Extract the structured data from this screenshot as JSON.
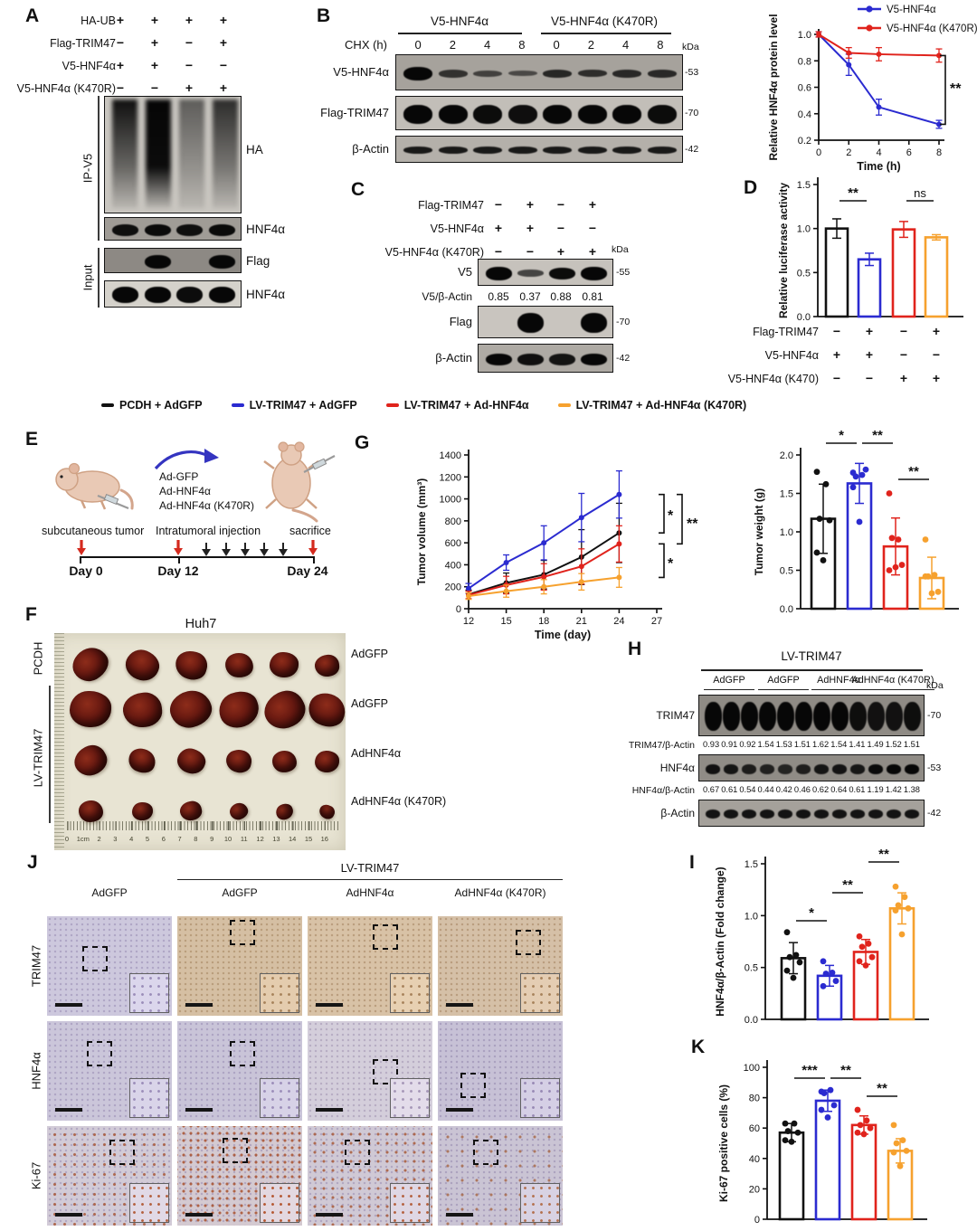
{
  "colors": {
    "black": "#111111",
    "blue": "#2b2bd0",
    "red": "#e0231c",
    "orange": "#f6a12e"
  },
  "panelA": {
    "label": "A",
    "conditions": [
      {
        "name": "HA-UB",
        "values": [
          "+",
          "+",
          "+",
          "+"
        ]
      },
      {
        "name": "Flag-TRIM47",
        "values": [
          "−",
          "+",
          "−",
          "+"
        ]
      },
      {
        "name": "V5-HNF4α",
        "values": [
          "+",
          "+",
          "−",
          "−"
        ]
      },
      {
        "name": "V5-HNF4α (K470R)",
        "values": [
          "−",
          "−",
          "+",
          "+"
        ]
      }
    ],
    "ip_label": "IP-V5",
    "input_label": "Input",
    "blots": [
      {
        "name": "HA",
        "type": "smear"
      },
      {
        "name": "HNF4α",
        "bands": [
          0.9,
          0.95,
          0.9,
          0.95
        ],
        "bh": 13
      },
      {
        "name": "Flag",
        "bands": [
          0,
          1,
          0,
          1
        ],
        "bh": 15
      },
      {
        "name": "HNF4α",
        "bands": [
          1,
          1,
          0.95,
          1
        ],
        "bh": 18
      }
    ]
  },
  "panelB": {
    "label": "B",
    "groups": [
      "V5-HNF4α",
      "V5-HNF4α (K470R)"
    ],
    "chx_label": "CHX (h)",
    "times": [
      "0",
      "2",
      "4",
      "8",
      "0",
      "2",
      "4",
      "8"
    ],
    "kda": "kDa",
    "blots": [
      {
        "name": "V5-HNF4α",
        "kda": "-53",
        "bands": [
          1,
          0.5,
          0.32,
          0.22,
          0.62,
          0.55,
          0.6,
          0.6
        ],
        "bh": [
          15,
          9,
          7,
          6,
          9,
          8,
          9,
          9
        ]
      },
      {
        "name": "Flag-TRIM47",
        "kda": "-70",
        "bands": [
          1,
          1,
          0.95,
          0.92,
          1,
          1,
          1,
          0.95
        ],
        "bh": 21
      },
      {
        "name": "β-Actin",
        "kda": "-42",
        "bands": [
          0.8,
          0.8,
          0.8,
          0.8,
          0.8,
          0.8,
          0.8,
          0.8
        ],
        "bh": 8
      }
    ]
  },
  "panelC": {
    "label": "C",
    "conditions": [
      {
        "name": "Flag-TRIM47",
        "values": [
          "−",
          "+",
          "−",
          "+"
        ]
      },
      {
        "name": "V5-HNF4α",
        "values": [
          "+",
          "+",
          "−",
          "−"
        ]
      },
      {
        "name": "V5-HNF4α (K470R)",
        "values": [
          "−",
          "−",
          "+",
          "+"
        ]
      }
    ],
    "kda": "kDa",
    "ratio": {
      "name": "V5/β-Actin",
      "values": [
        "0.85",
        "0.37",
        "0.88",
        "0.81"
      ]
    },
    "blots": [
      {
        "name": "V5",
        "kda": "-55",
        "bands": [
          1,
          0.4,
          0.95,
          1
        ],
        "bh": [
          15,
          8,
          13,
          15
        ]
      },
      {
        "name": "Flag",
        "kda": "-70",
        "bands": [
          0,
          1,
          0,
          1
        ],
        "bh": 22
      },
      {
        "name": "β-Actin",
        "kda": "-42",
        "bands": [
          1,
          0.9,
          0.85,
          1
        ],
        "bh": 13
      }
    ]
  },
  "panelD": {
    "label": "D"
  },
  "legend": {
    "items": [
      {
        "label": "PCDH + AdGFP",
        "color": "black"
      },
      {
        "label": "LV-TRIM47 + AdGFP",
        "color": "blue"
      },
      {
        "label": "LV-TRIM47 + Ad-HNF4α",
        "color": "red"
      },
      {
        "label": "LV-TRIM47 + Ad-HNF4α (K470R)",
        "color": "orange"
      }
    ]
  },
  "panelE": {
    "label": "E",
    "injections": [
      "Ad-GFP",
      "Ad-HNF4α",
      "Ad-HNF4α (K470R)"
    ],
    "events": [
      {
        "label": "subcutaneous tumor",
        "day": "Day 0"
      },
      {
        "label": "Intratumoral injection",
        "day": "Day 12"
      },
      {
        "label": "sacrifice",
        "day": "Day 24"
      }
    ]
  },
  "panelF": {
    "label": "F",
    "title": "Huh7",
    "left_labels": [
      "PCDH",
      "LV-TRIM47"
    ],
    "row_labels": [
      "AdGFP",
      "AdGFP",
      "AdHNF4α",
      "AdHNF4α (K470R)"
    ],
    "ruler": [
      "0",
      "1cm",
      "2",
      "3",
      "4",
      "5",
      "6",
      "7",
      "8",
      "9",
      "10",
      "11",
      "12",
      "13",
      "14",
      "15",
      "16"
    ]
  },
  "panelG": {
    "label": "G"
  },
  "panelH": {
    "label": "H",
    "header": "LV-TRIM47",
    "kda": "kDa",
    "groups": [
      "AdGFP",
      "AdGFP",
      "AdHNF4α",
      "AdHNF4α (K470R)"
    ],
    "rows": [
      {
        "type": "blot",
        "name": "TRIM47",
        "kda": "-70",
        "bands": [
          1,
          1,
          1,
          1,
          1,
          1,
          1,
          1,
          0.9,
          0.85,
          0.85,
          0.9
        ],
        "bh": 32
      },
      {
        "type": "values",
        "name": "TRIM47/β-Actin",
        "values": [
          "0.93",
          "0.91",
          "0.92",
          "1.54",
          "1.53",
          "1.51",
          "1.62",
          "1.54",
          "1.41",
          "1.49",
          "1.52",
          "1.51"
        ]
      },
      {
        "type": "blot",
        "name": "HNF4α",
        "kda": "-53",
        "bands": [
          0.85,
          0.8,
          0.7,
          0.65,
          0.6,
          0.68,
          0.8,
          0.82,
          0.78,
          0.95,
          1,
          1
        ],
        "bh": 11
      },
      {
        "type": "values",
        "name": "HNF4α/β-Actin",
        "values": [
          "0.67",
          "0.61",
          "0.54",
          "0.44",
          "0.42",
          "0.46",
          "0.62",
          "0.64",
          "0.61",
          "1.19",
          "1.42",
          "1.38"
        ]
      },
      {
        "type": "blot",
        "name": "β-Actin",
        "kda": "-42",
        "bands": [
          0.85,
          0.85,
          0.85,
          0.85,
          0.85,
          0.85,
          0.85,
          0.85,
          0.85,
          0.85,
          0.85,
          0.85
        ],
        "bh": 10
      }
    ]
  },
  "panelI": {
    "label": "I"
  },
  "panelJ": {
    "label": "J",
    "header": "LV-TRIM47",
    "col_labels": [
      "AdGFP",
      "AdGFP",
      "AdHNF4α",
      "AdHNF4α (K470R)"
    ],
    "row_labels": [
      "TRIM47",
      "HNF4α",
      "Ki-67"
    ],
    "cells": [
      [
        {
          "bg": "#cdc8dd",
          "spk": "#9184ad"
        },
        {
          "bg": "#d5bfa3",
          "spk": "#9c7a55"
        },
        {
          "bg": "#d8c2a6",
          "spk": "#9c7a55"
        },
        {
          "bg": "#d5c0a7",
          "spk": "#9c7a55"
        }
      ],
      [
        {
          "bg": "#cbc6da",
          "spk": "#9184ad"
        },
        {
          "bg": "#c9c4d8",
          "spk": "#9184ad"
        },
        {
          "bg": "#d4cedb",
          "spk": "#9a8cab"
        },
        {
          "bg": "#c7c1d6",
          "spk": "#8d80a8"
        }
      ],
      [
        {
          "bg": "#d2cbd7",
          "spk": "#9184ad",
          "dot": "#a85a3a",
          "ds": "11px"
        },
        {
          "bg": "#d4cad1",
          "spk": "#9184ad",
          "dot": "#a8512e",
          "ds": "8px"
        },
        {
          "bg": "#d0c9d5",
          "spk": "#9184ad",
          "dot": "#a85a3a",
          "ds": "10px"
        },
        {
          "bg": "#cac4d4",
          "spk": "#8d80a8",
          "dot": "#a86a4a",
          "ds": "16px"
        }
      ]
    ]
  },
  "panelK": {
    "label": "K"
  },
  "chart_data": [
    {
      "id": "hnf4a_decay",
      "panel": "B",
      "type": "line",
      "xlabel": "Time (h)",
      "ylabel": "Relative HNF4α protein level",
      "x": [
        0,
        2,
        4,
        8
      ],
      "xticks": [
        0,
        2,
        4,
        6,
        8
      ],
      "xlim": [
        0,
        8
      ],
      "ylim": [
        0.2,
        1.0
      ],
      "yticks": [
        0.2,
        0.4,
        0.6,
        0.8,
        1.0
      ],
      "series": [
        {
          "name": "V5-HNF4α",
          "color": "blue",
          "values": [
            1.0,
            0.77,
            0.45,
            0.32
          ],
          "err": [
            0.02,
            0.08,
            0.06,
            0.03
          ]
        },
        {
          "name": "V5-HNF4α (K470R)",
          "color": "red",
          "values": [
            1.0,
            0.86,
            0.85,
            0.84
          ],
          "err": [
            0.02,
            0.04,
            0.05,
            0.05
          ]
        }
      ],
      "sig": "**",
      "legend_position": "top-right"
    },
    {
      "id": "luciferase",
      "panel": "D",
      "type": "bar",
      "ylabel": "Relative luciferase activity",
      "ylim": [
        0,
        1.5
      ],
      "yticks": [
        0.0,
        0.5,
        1.0,
        1.5
      ],
      "values": [
        1.0,
        0.65,
        0.99,
        0.9
      ],
      "err": [
        0.11,
        0.07,
        0.09,
        0.03
      ],
      "colors": [
        "black",
        "blue",
        "red",
        "orange"
      ],
      "sig": [
        {
          "from": 0,
          "to": 1,
          "label": "**"
        },
        {
          "from": 2,
          "to": 3,
          "label": "ns"
        }
      ],
      "conditions": [
        {
          "name": "Flag-TRIM47",
          "values": [
            "−",
            "+",
            "−",
            "+"
          ]
        },
        {
          "name": "V5-HNF4α",
          "values": [
            "+",
            "+",
            "−",
            "−"
          ]
        },
        {
          "name": "V5-HNF4α (K470)",
          "values": [
            "−",
            "−",
            "+",
            "+"
          ]
        }
      ]
    },
    {
      "id": "tumor_volume",
      "panel": "G",
      "type": "line",
      "xlabel": "Time (day)",
      "ylabel": "Tumor volume (mm³)",
      "x": [
        12,
        15,
        18,
        21,
        24
      ],
      "xticks": [
        12,
        15,
        18,
        21,
        24,
        27
      ],
      "xlim": [
        12,
        27
      ],
      "ylim": [
        0,
        1400
      ],
      "yticks": [
        0,
        200,
        400,
        600,
        800,
        1000,
        1200,
        1400
      ],
      "series": [
        {
          "name": "PCDH + AdGFP",
          "color": "black",
          "values": [
            130,
            235,
            310,
            470,
            690
          ],
          "err": [
            40,
            90,
            130,
            250,
            270
          ]
        },
        {
          "name": "LV-TRIM47 + AdGFP",
          "color": "blue",
          "values": [
            185,
            420,
            600,
            830,
            1040
          ],
          "err": [
            45,
            70,
            155,
            220,
            215
          ]
        },
        {
          "name": "LV-TRIM47 + Ad-HNF4α",
          "color": "red",
          "values": [
            125,
            215,
            290,
            385,
            590
          ],
          "err": [
            35,
            80,
            120,
            160,
            165
          ]
        },
        {
          "name": "LV-TRIM47 + Ad-HNF4α (K470R)",
          "color": "orange",
          "values": [
            115,
            160,
            200,
            245,
            285
          ],
          "err": [
            30,
            55,
            65,
            75,
            90
          ]
        }
      ],
      "sig": [
        {
          "label": "*"
        },
        {
          "label": "**"
        },
        {
          "label": "*"
        }
      ]
    },
    {
      "id": "tumor_weight",
      "panel": "G",
      "type": "bar",
      "ylabel": "Tumor weight (g)",
      "ylim": [
        0,
        2.0
      ],
      "yticks": [
        0.0,
        0.5,
        1.0,
        1.5,
        2.0
      ],
      "values": [
        1.17,
        1.63,
        0.81,
        0.4
      ],
      "err": [
        0.45,
        0.26,
        0.37,
        0.27
      ],
      "colors": [
        "black",
        "blue",
        "red",
        "orange"
      ],
      "dots": [
        [
          1.78,
          1.62,
          1.17,
          1.15,
          0.73,
          0.63
        ],
        [
          1.77,
          1.74,
          1.72,
          1.81,
          1.58,
          1.13
        ],
        [
          1.5,
          0.9,
          0.92,
          0.57,
          0.5,
          0.54
        ],
        [
          0.9,
          0.44,
          0.42,
          0.22,
          0.42,
          0.2
        ]
      ],
      "sig": [
        {
          "from": 0,
          "to": 1,
          "label": "*"
        },
        {
          "from": 1,
          "to": 2,
          "label": "**"
        },
        {
          "from": 2,
          "to": 3,
          "label": "**"
        }
      ]
    },
    {
      "id": "hnf4a_fold",
      "panel": "I",
      "type": "bar",
      "ylabel": "HNF4α/β-Actin (Fold change)",
      "ylim": [
        0,
        1.5
      ],
      "yticks": [
        0.0,
        0.5,
        1.0,
        1.5
      ],
      "values": [
        0.59,
        0.42,
        0.65,
        1.07
      ],
      "err": [
        0.15,
        0.1,
        0.12,
        0.15
      ],
      "colors": [
        "black",
        "blue",
        "red",
        "orange"
      ],
      "dots": [
        [
          0.84,
          0.62,
          0.6,
          0.55,
          0.47,
          0.4
        ],
        [
          0.56,
          0.45,
          0.44,
          0.37,
          0.32
        ],
        [
          0.8,
          0.73,
          0.7,
          0.6,
          0.56,
          0.52
        ],
        [
          1.28,
          1.18,
          1.1,
          1.07,
          1.05,
          0.82
        ]
      ],
      "sig": [
        {
          "from": 0,
          "to": 1,
          "label": "*"
        },
        {
          "from": 1,
          "to": 2,
          "label": "**"
        },
        {
          "from": 2,
          "to": 3,
          "label": "**"
        }
      ]
    },
    {
      "id": "ki67",
      "panel": "K",
      "type": "bar",
      "ylabel": "Ki-67 positive cells (%)",
      "ylim": [
        0,
        100
      ],
      "yticks": [
        0,
        20,
        40,
        60,
        80,
        100
      ],
      "values": [
        57,
        78,
        62,
        45
      ],
      "err": [
        6,
        7,
        6,
        8
      ],
      "colors": [
        "black",
        "blue",
        "red",
        "orange"
      ],
      "dots": [
        [
          63,
          63,
          58,
          57,
          52,
          51
        ],
        [
          84,
          85,
          83,
          75,
          72,
          67
        ],
        [
          72,
          65,
          62,
          60,
          57,
          56
        ],
        [
          62,
          52,
          50,
          45,
          44,
          35
        ]
      ],
      "sig": [
        {
          "from": 0,
          "to": 1,
          "label": "***"
        },
        {
          "from": 1,
          "to": 2,
          "label": "**"
        },
        {
          "from": 2,
          "to": 3,
          "label": "**"
        }
      ]
    }
  ]
}
